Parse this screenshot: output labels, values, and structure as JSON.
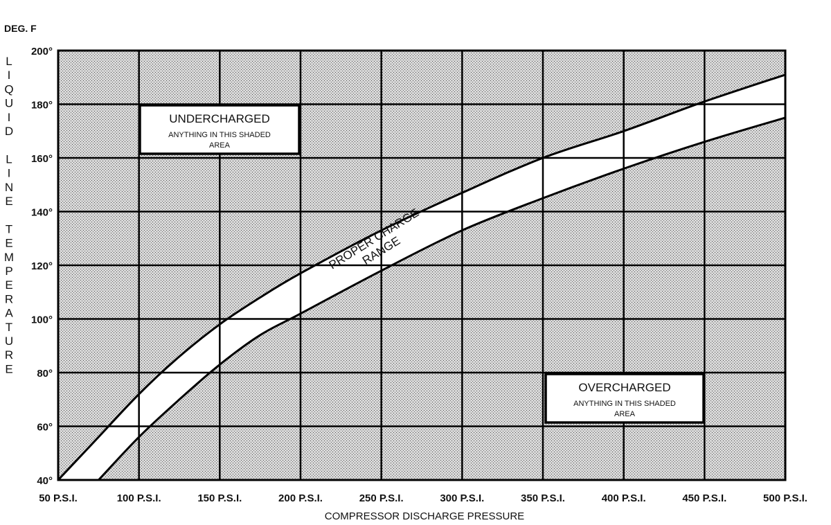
{
  "chart_data": {
    "type": "area",
    "ylabel": "LIQUID LINE TEMPERATURE",
    "xlabel": "COMPRESSOR DISCHARGE PRESSURE",
    "y_unit": "DEG. F",
    "xlim": [
      50,
      500
    ],
    "ylim": [
      40,
      200
    ],
    "x_ticks": [
      50,
      100,
      150,
      200,
      250,
      300,
      350,
      400,
      450,
      500
    ],
    "x_tick_labels": [
      "50 P.S.I.",
      "100 P.S.I.",
      "150 P.S.I.",
      "200 P.S.I.",
      "250 P.S.I.",
      "300 P.S.I.",
      "350 P.S.I.",
      "400 P.S.I.",
      "450 P.S.I.",
      "500 P.S.I."
    ],
    "y_ticks": [
      40,
      60,
      80,
      100,
      120,
      140,
      160,
      180,
      200
    ],
    "y_tick_labels": [
      "40°",
      "60°",
      "80°",
      "100°",
      "120°",
      "140°",
      "160°",
      "180°",
      "200°"
    ],
    "grid": true,
    "series": [
      {
        "x": [
          50,
          75,
          100,
          125,
          150,
          175,
          200,
          250,
          300,
          350,
          400,
          450,
          500
        ],
        "values": [
          40,
          56,
          72,
          86,
          98,
          108,
          117,
          133,
          147,
          160,
          170,
          181,
          191
        ]
      },
      {
        "x": [
          75,
          100,
          125,
          150,
          175,
          200,
          250,
          300,
          350,
          400,
          450,
          500
        ],
        "values": [
          40,
          56,
          70,
          83,
          94,
          102,
          118,
          133,
          145,
          156,
          166,
          175
        ]
      }
    ],
    "annotations": {
      "band": [
        "PROPER CHARGE",
        "RANGE"
      ],
      "upper_region": {
        "title": "UNDERCHARGED",
        "subtitle": [
          "ANYTHING IN THIS SHADED",
          "AREA"
        ]
      },
      "lower_region": {
        "title": "OVERCHARGED",
        "subtitle": [
          "ANYTHING IN THIS SHADED",
          "AREA"
        ]
      }
    }
  }
}
